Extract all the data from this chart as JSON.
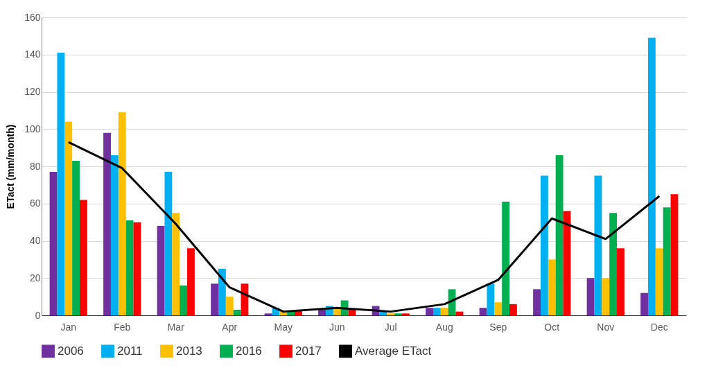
{
  "chart_data": {
    "type": "bar",
    "ylabel": "ETact (mm/month)",
    "categories": [
      "Jan",
      "Feb",
      "Mar",
      "Apr",
      "May",
      "Jun",
      "Jul",
      "Aug",
      "Sep",
      "Oct",
      "Nov",
      "Dec"
    ],
    "series": [
      {
        "name": "2006",
        "color": "#7030a0",
        "values": [
          77,
          98,
          48,
          17,
          1,
          3,
          5,
          4,
          4,
          14,
          20,
          12
        ]
      },
      {
        "name": "2011",
        "color": "#00b0f0",
        "values": [
          141,
          86,
          77,
          25,
          4,
          5,
          2,
          4,
          17,
          75,
          75,
          149
        ]
      },
      {
        "name": "2013",
        "color": "#ffc000",
        "values": [
          104,
          109,
          55,
          10,
          2,
          4,
          1,
          4,
          7,
          30,
          20,
          36
        ]
      },
      {
        "name": "2016",
        "color": "#00b050",
        "values": [
          83,
          51,
          16,
          3,
          2,
          8,
          1,
          14,
          61,
          86,
          55,
          58
        ]
      },
      {
        "name": "2017",
        "color": "#ff0000",
        "values": [
          62,
          50,
          36,
          17,
          3,
          3,
          1,
          2,
          6,
          56,
          36,
          65
        ]
      },
      {
        "name": "Average ETact",
        "type": "line",
        "color": "#000000",
        "values": [
          93,
          79,
          49,
          15,
          2,
          4,
          2,
          6,
          19,
          52,
          41,
          64
        ]
      }
    ],
    "ylim": [
      0,
      160
    ],
    "yticks": [
      0,
      20,
      40,
      60,
      80,
      100,
      120,
      140,
      160
    ],
    "grid": "y",
    "legend": "bottom"
  }
}
